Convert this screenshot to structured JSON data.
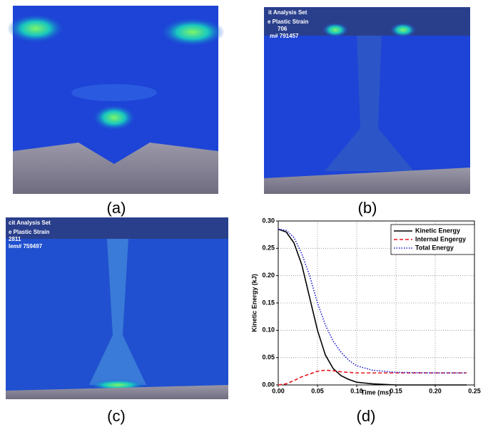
{
  "panels": [
    {
      "label": "(a)",
      "overlay": []
    },
    {
      "label": "(b)",
      "overlay": [
        "it Analysis Set",
        "e Plastic Strain",
        "706",
        "m# 791457"
      ]
    },
    {
      "label": "(c)",
      "overlay": [
        "cit Analysis Set",
        "e Plastic Strain",
        "2811",
        "lem# 759497"
      ]
    },
    {
      "label": "(d)",
      "overlay": []
    }
  ],
  "chart_data": {
    "type": "line",
    "x_label": "Time (ms)",
    "y_label": "Kinetic Energy (kJ)",
    "x": [
      0,
      0.01,
      0.02,
      0.03,
      0.04,
      0.05,
      0.06,
      0.07,
      0.08,
      0.09,
      0.1,
      0.12,
      0.15,
      0.2,
      0.24
    ],
    "series": [
      {
        "name": "Kinetic Energy",
        "color": "#000000",
        "style": "solid",
        "values": [
          0.285,
          0.28,
          0.26,
          0.22,
          0.16,
          0.1,
          0.055,
          0.03,
          0.017,
          0.01,
          0.005,
          0.002,
          0,
          0,
          0
        ]
      },
      {
        "name": "Internal Engergy",
        "color": "#e8141c",
        "style": "dashed",
        "values": [
          0,
          0.002,
          0.008,
          0.015,
          0.02,
          0.025,
          0.027,
          0.026,
          0.024,
          0.023,
          0.022,
          0.022,
          0.022,
          0.022,
          0.022
        ]
      },
      {
        "name": "Total Energy",
        "color": "#1a1acc",
        "style": "dotted",
        "values": [
          0.285,
          0.283,
          0.27,
          0.24,
          0.2,
          0.15,
          0.11,
          0.08,
          0.06,
          0.045,
          0.035,
          0.027,
          0.023,
          0.022,
          0.022
        ]
      }
    ],
    "xlim": [
      0,
      0.25
    ],
    "xticks": [
      {
        "value": 0,
        "label": "0.00"
      },
      {
        "value": 0.05,
        "label": "0.05"
      },
      {
        "value": 0.1,
        "label": "0.10"
      },
      {
        "value": 0.15,
        "label": "0.15"
      },
      {
        "value": 0.2,
        "label": "0.20"
      },
      {
        "value": 0.25,
        "label": "0.25"
      }
    ],
    "ylim": [
      0,
      0.3
    ],
    "yticks": [
      {
        "value": 0,
        "label": "0.00"
      },
      {
        "value": 0.05,
        "label": "0.05"
      },
      {
        "value": 0.1,
        "label": "0.10"
      },
      {
        "value": 0.15,
        "label": "0.15"
      },
      {
        "value": 0.2,
        "label": "0.20"
      },
      {
        "value": 0.25,
        "label": "0.25"
      },
      {
        "value": 0.3,
        "label": "0.30"
      }
    ],
    "grid": true,
    "legend": "top-right"
  }
}
